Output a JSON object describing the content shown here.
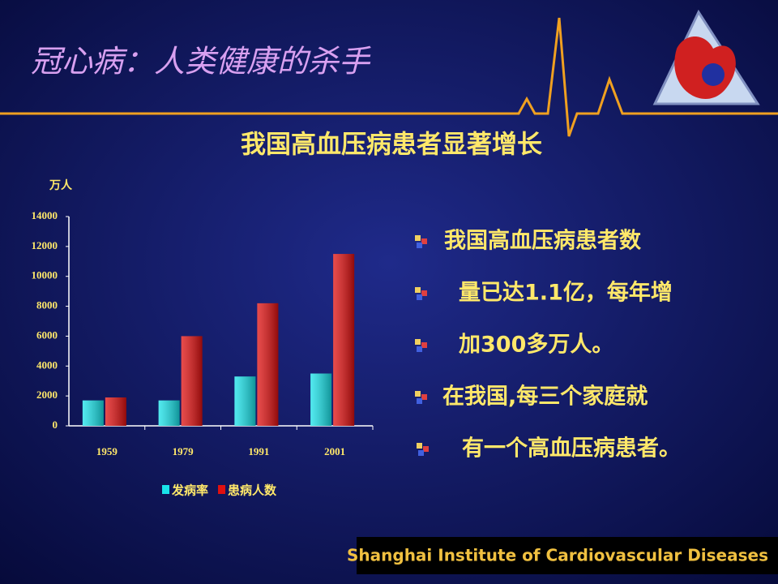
{
  "slide_title": "冠心病：人类健康的杀手",
  "chart_data": {
    "type": "bar",
    "title": "我国高血压病患者显著增长",
    "ylabel": "万人",
    "categories": [
      "1959",
      "1979",
      "1991",
      "2001"
    ],
    "series": [
      {
        "name": "发病率",
        "color": "#19e3ea",
        "values": [
          1700,
          1700,
          3300,
          3500
        ]
      },
      {
        "name": "患病人数",
        "color": "#e01010",
        "values": [
          1900,
          6000,
          8200,
          11500
        ]
      }
    ],
    "ylim": [
      0,
      14000
    ],
    "yticks": [
      0,
      2000,
      4000,
      6000,
      8000,
      10000,
      12000,
      14000
    ],
    "legend": "bottom"
  },
  "bullets": [
    "我国高血压病患者数",
    "量已达1.1亿，每年增",
    "加300多万人。",
    "在我国,每三个家庭就",
    "有一个高血压病患者。"
  ],
  "footer": "Shanghai Institute of Cardiovascular Diseases"
}
